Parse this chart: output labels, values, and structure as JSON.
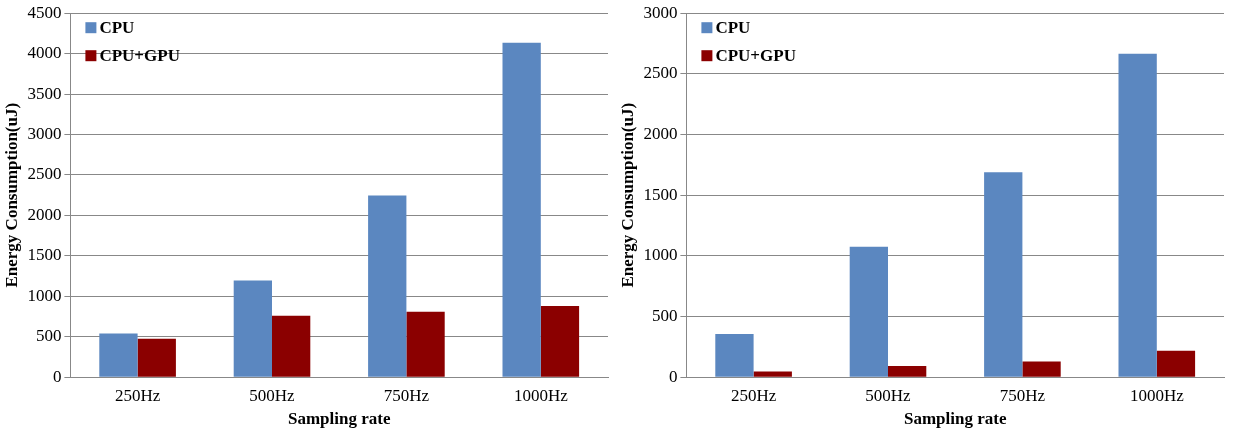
{
  "chart_data": [
    {
      "type": "bar",
      "xlabel": "Sampling rate",
      "ylabel": "Energy Consumption(uJ)",
      "categories": [
        "250Hz",
        "500Hz",
        "750Hz",
        "1000Hz"
      ],
      "series": [
        {
          "name": "CPU",
          "color": "#5b87c0",
          "values": [
            540,
            1195,
            2245,
            4135
          ]
        },
        {
          "name": "CPU+GPU",
          "color": "#8b0000",
          "values": [
            475,
            760,
            810,
            880
          ]
        }
      ],
      "ylim": [
        0,
        4500
      ],
      "yticks": [
        0,
        500,
        1000,
        1500,
        2000,
        2500,
        3000,
        3500,
        4000,
        4500
      ],
      "grid": "y",
      "legend": "top left"
    },
    {
      "type": "bar",
      "xlabel": "Sampling rate",
      "ylabel": "Energy Consumption(uJ)",
      "categories": [
        "250Hz",
        "500Hz",
        "750Hz",
        "1000Hz"
      ],
      "series": [
        {
          "name": "CPU",
          "color": "#5b87c0",
          "values": [
            357,
            1075,
            1690,
            2665
          ]
        },
        {
          "name": "CPU+GPU",
          "color": "#8b0000",
          "values": [
            47,
            93,
            130,
            218
          ]
        }
      ],
      "ylim": [
        0,
        3000
      ],
      "yticks": [
        0,
        500,
        1000,
        1500,
        2000,
        2500,
        3000
      ],
      "grid": "y",
      "legend": "top left"
    }
  ]
}
